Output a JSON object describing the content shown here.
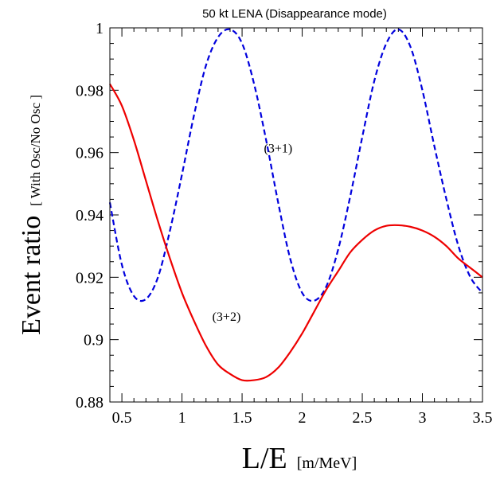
{
  "chart_data": {
    "type": "line",
    "title": "50 kt LENA (Disappearance mode)",
    "xlabel": "L/E",
    "xlabel_unit": "[m/MeV]",
    "ylabel": "Event ratio",
    "ylabel_unit": "[ With Osc/No Osc ]",
    "xlim": [
      0.4,
      3.5
    ],
    "ylim": [
      0.88,
      1.0
    ],
    "x_ticks": [
      0.5,
      1,
      1.5,
      2,
      2.5,
      3,
      3.5
    ],
    "x_tick_labels": [
      "0.5",
      "1",
      "1.5",
      "2",
      "2.5",
      "3",
      "3.5"
    ],
    "y_ticks": [
      0.88,
      0.9,
      0.92,
      0.94,
      0.96,
      0.98,
      1.0
    ],
    "y_tick_labels": [
      "0.88",
      "0.9",
      "0.92",
      "0.94",
      "0.96",
      "0.98",
      "1"
    ],
    "grid": false,
    "series": [
      {
        "name": "(3+1)",
        "color": "#0000dd",
        "dash": "dashed",
        "x": [
          0.4,
          0.5,
          0.6,
          0.7,
          0.8,
          0.9,
          1.0,
          1.1,
          1.2,
          1.3,
          1.4,
          1.5,
          1.6,
          1.7,
          1.8,
          1.9,
          2.0,
          2.1,
          2.2,
          2.3,
          2.4,
          2.5,
          2.6,
          2.7,
          2.8,
          2.9,
          3.0,
          3.1,
          3.2,
          3.3,
          3.4,
          3.5
        ],
        "y": [
          0.944,
          0.924,
          0.914,
          0.913,
          0.92,
          0.935,
          0.953,
          0.972,
          0.988,
          0.997,
          0.9995,
          0.995,
          0.982,
          0.964,
          0.944,
          0.926,
          0.915,
          0.9125,
          0.917,
          0.929,
          0.946,
          0.965,
          0.983,
          0.995,
          0.9995,
          0.994,
          0.98,
          0.962,
          0.945,
          0.93,
          0.92,
          0.915
        ]
      },
      {
        "name": "(3+2)",
        "color": "#ee0000",
        "dash": "solid",
        "x": [
          0.4,
          0.5,
          0.6,
          0.7,
          0.8,
          0.9,
          1.0,
          1.1,
          1.2,
          1.3,
          1.4,
          1.5,
          1.6,
          1.7,
          1.8,
          1.9,
          2.0,
          2.1,
          2.2,
          2.3,
          2.4,
          2.5,
          2.6,
          2.7,
          2.8,
          2.9,
          3.0,
          3.1,
          3.2,
          3.3,
          3.4,
          3.5
        ],
        "y": [
          0.982,
          0.975,
          0.964,
          0.951,
          0.938,
          0.926,
          0.915,
          0.906,
          0.898,
          0.892,
          0.889,
          0.887,
          0.887,
          0.888,
          0.891,
          0.896,
          0.902,
          0.909,
          0.916,
          0.922,
          0.928,
          0.932,
          0.935,
          0.9365,
          0.9367,
          0.9362,
          0.935,
          0.933,
          0.93,
          0.926,
          0.923,
          0.92
        ]
      }
    ],
    "annotations": [
      {
        "text": "(3+1)",
        "x": 1.8,
        "y": 0.96
      },
      {
        "text": "(3+2)",
        "x": 1.37,
        "y": 0.906
      }
    ]
  }
}
